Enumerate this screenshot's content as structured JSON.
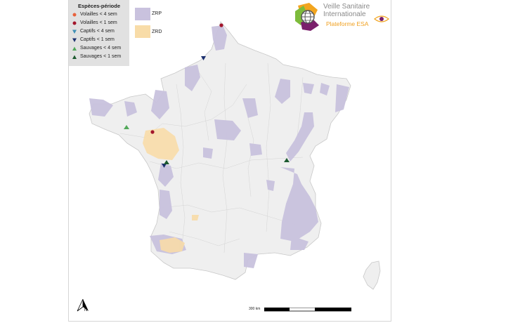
{
  "legend": {
    "title": "Espèces-période",
    "items": [
      {
        "label": "Volailles < 4 sem",
        "shape": "circle",
        "color": "#e8613c"
      },
      {
        "label": "Volailles < 1 sem",
        "shape": "circle",
        "color": "#a3152b"
      },
      {
        "label": "Captifs < 4 sem",
        "shape": "triangle-down",
        "color": "#3f8fb5"
      },
      {
        "label": "Captifs < 1 sem",
        "shape": "triangle-down",
        "color": "#1b2f6e"
      },
      {
        "label": "Sauvages < 4 sem",
        "shape": "triangle-up",
        "color": "#52a85a"
      },
      {
        "label": "Sauvages < 1 sem",
        "shape": "triangle-up",
        "color": "#1c5a2f"
      }
    ]
  },
  "zones": [
    {
      "label": "ZRP",
      "color": "#c9c2de"
    },
    {
      "label": "ZRD",
      "color": "#f8dca8"
    }
  ],
  "logo": {
    "line1": "Veille Sanitaire",
    "line2": "Internationale",
    "line3": "Plateforme ESA"
  },
  "scale": {
    "label": "300 km"
  },
  "markers": [
    {
      "species": "Volailles < 1 sem",
      "location": "Pas-de-Calais coast"
    },
    {
      "species": "Captifs < 1 sem",
      "location": "Somme"
    },
    {
      "species": "Volailles < 1 sem",
      "location": "Loire-Atlantique"
    },
    {
      "species": "Sauvages < 4 sem",
      "location": "Morbihan"
    },
    {
      "species": "Captifs < 1 sem",
      "location": "Vendée"
    },
    {
      "species": "Sauvages < 1 sem",
      "location": "Vendée"
    },
    {
      "species": "Sauvages < 1 sem",
      "location": "Ain"
    }
  ]
}
